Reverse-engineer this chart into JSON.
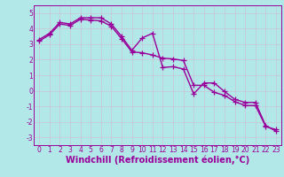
{
  "line1_x": [
    0,
    1,
    2,
    3,
    4,
    5,
    6,
    7,
    8,
    9,
    10,
    11,
    12,
    13,
    14,
    15,
    16,
    17,
    18,
    19,
    20,
    21,
    22,
    23
  ],
  "line1_y": [
    3.3,
    3.7,
    4.4,
    4.3,
    4.7,
    4.7,
    4.7,
    4.3,
    3.5,
    2.6,
    3.4,
    3.7,
    1.5,
    1.55,
    1.4,
    -0.2,
    0.5,
    0.5,
    -0.05,
    -0.55,
    -0.75,
    -0.75,
    -2.25,
    -2.6
  ],
  "line2_x": [
    0,
    1,
    2,
    3,
    4,
    5,
    6,
    7,
    8,
    9,
    10,
    11,
    12,
    13,
    14,
    15,
    16,
    17,
    18,
    19,
    20,
    21,
    22,
    23
  ],
  "line2_y": [
    3.2,
    3.6,
    4.3,
    4.2,
    4.6,
    4.55,
    4.5,
    4.15,
    3.35,
    2.5,
    2.45,
    2.3,
    2.1,
    2.05,
    1.95,
    0.35,
    0.35,
    -0.1,
    -0.3,
    -0.7,
    -0.95,
    -0.95,
    -2.3,
    -2.5
  ],
  "line_color": "#990099",
  "background_color": "#b3e8e8",
  "grid_color": "#c8c8d8",
  "xlabel": "Windchill (Refroidissement éolien,°C)",
  "ylim": [
    -3.5,
    5.5
  ],
  "xlim": [
    -0.5,
    23.5
  ],
  "yticks": [
    -3,
    -2,
    -1,
    0,
    1,
    2,
    3,
    4,
    5
  ],
  "xticks": [
    0,
    1,
    2,
    3,
    4,
    5,
    6,
    7,
    8,
    9,
    10,
    11,
    12,
    13,
    14,
    15,
    16,
    17,
    18,
    19,
    20,
    21,
    22,
    23
  ],
  "marker": "+",
  "marker_size": 4,
  "linewidth": 1.0,
  "xlabel_fontsize": 7,
  "tick_fontsize": 5.5
}
